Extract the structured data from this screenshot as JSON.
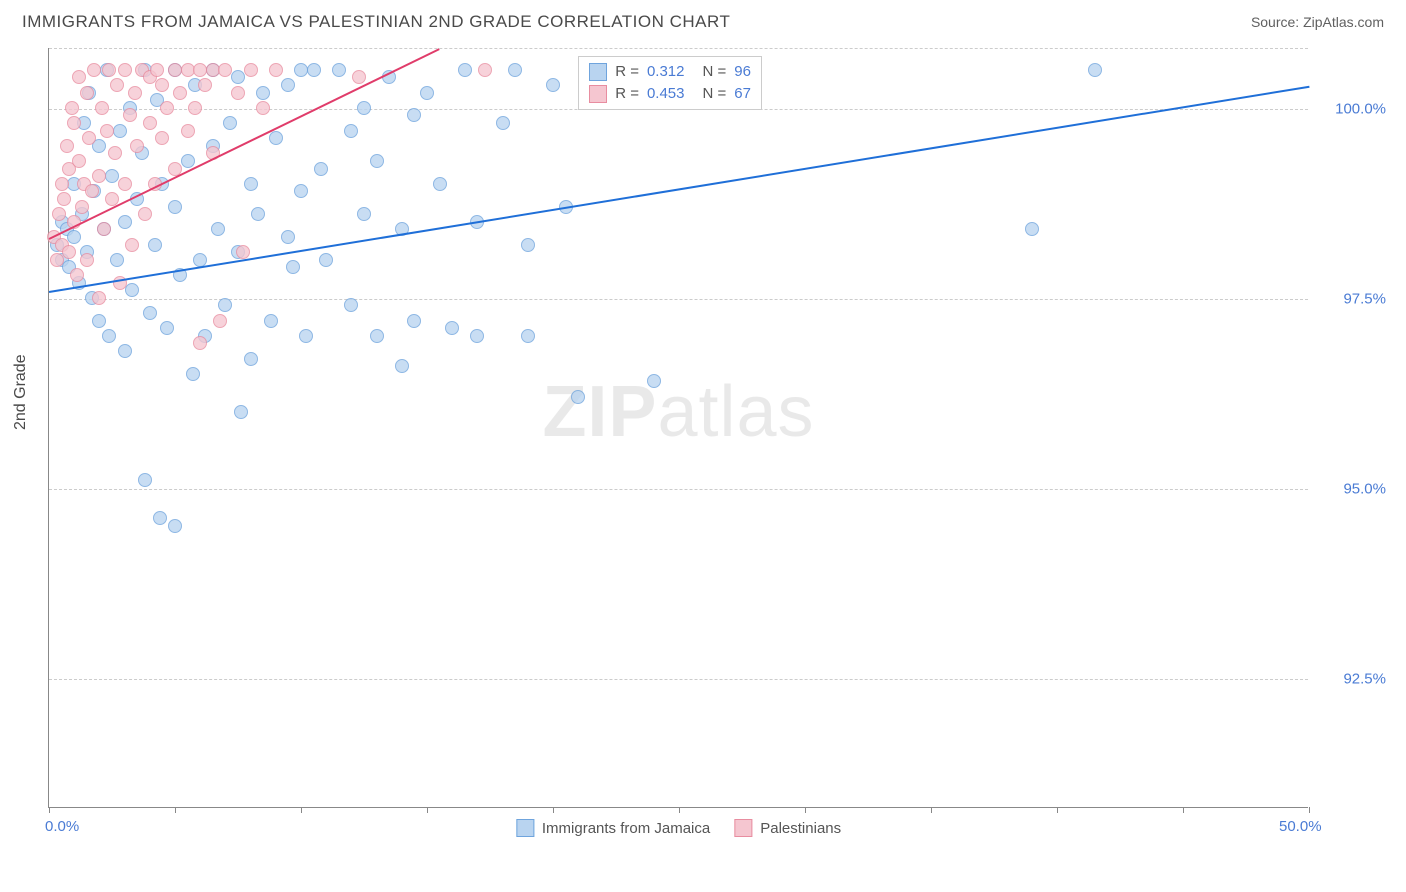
{
  "header": {
    "title": "IMMIGRANTS FROM JAMAICA VS PALESTINIAN 2ND GRADE CORRELATION CHART",
    "source": "Source: ZipAtlas.com"
  },
  "chart": {
    "type": "scatter",
    "ylabel": "2nd Grade",
    "watermark_a": "ZIP",
    "watermark_b": "atlas",
    "xlim": [
      0,
      50
    ],
    "ylim": [
      90.8,
      100.8
    ],
    "yticks": [
      {
        "v": 92.5,
        "label": "92.5%"
      },
      {
        "v": 95.0,
        "label": "95.0%"
      },
      {
        "v": 97.5,
        "label": "97.5%"
      },
      {
        "v": 100.0,
        "label": "100.0%"
      }
    ],
    "xtick_marks": [
      0,
      5,
      10,
      15,
      20,
      25,
      30,
      35,
      40,
      45,
      50
    ],
    "xtick_labels": [
      {
        "v": 0,
        "label": "0.0%"
      },
      {
        "v": 50,
        "label": "50.0%"
      }
    ],
    "background_color": "#ffffff",
    "grid_color": "#cccccc",
    "axis_color": "#888888",
    "series": [
      {
        "key": "jamaica",
        "name": "Immigrants from Jamaica",
        "fill": "#b9d4f0",
        "stroke": "#6fa4dd",
        "line_color": "#1f6fd8",
        "marker_size": 14,
        "R": "0.312",
        "N": "96",
        "trend": {
          "x1": 0,
          "y1": 97.6,
          "x2": 50,
          "y2": 100.3
        },
        "points": [
          [
            0.3,
            98.2
          ],
          [
            0.5,
            98.0
          ],
          [
            0.5,
            98.5
          ],
          [
            0.7,
            98.4
          ],
          [
            0.8,
            97.9
          ],
          [
            1.0,
            98.3
          ],
          [
            1.0,
            99.0
          ],
          [
            1.2,
            97.7
          ],
          [
            1.3,
            98.6
          ],
          [
            1.4,
            99.8
          ],
          [
            1.5,
            98.1
          ],
          [
            1.6,
            100.2
          ],
          [
            1.7,
            97.5
          ],
          [
            1.8,
            98.9
          ],
          [
            2.0,
            99.5
          ],
          [
            2.0,
            97.2
          ],
          [
            2.2,
            98.4
          ],
          [
            2.3,
            100.5
          ],
          [
            2.4,
            97.0
          ],
          [
            2.5,
            99.1
          ],
          [
            2.7,
            98.0
          ],
          [
            2.8,
            99.7
          ],
          [
            3.0,
            96.8
          ],
          [
            3.0,
            98.5
          ],
          [
            3.2,
            100.0
          ],
          [
            3.3,
            97.6
          ],
          [
            3.5,
            98.8
          ],
          [
            3.7,
            99.4
          ],
          [
            3.8,
            100.5
          ],
          [
            3.8,
            95.1
          ],
          [
            4.0,
            97.3
          ],
          [
            4.2,
            98.2
          ],
          [
            4.3,
            100.1
          ],
          [
            4.4,
            94.6
          ],
          [
            4.5,
            99.0
          ],
          [
            4.7,
            97.1
          ],
          [
            5.0,
            98.7
          ],
          [
            5.0,
            100.5
          ],
          [
            5.0,
            94.5
          ],
          [
            5.2,
            97.8
          ],
          [
            5.5,
            99.3
          ],
          [
            5.7,
            96.5
          ],
          [
            5.8,
            100.3
          ],
          [
            6.0,
            98.0
          ],
          [
            6.2,
            97.0
          ],
          [
            6.5,
            99.5
          ],
          [
            6.5,
            100.5
          ],
          [
            6.7,
            98.4
          ],
          [
            7.0,
            97.4
          ],
          [
            7.2,
            99.8
          ],
          [
            7.5,
            98.1
          ],
          [
            7.5,
            100.4
          ],
          [
            7.6,
            96.0
          ],
          [
            8.0,
            99.0
          ],
          [
            8.0,
            96.7
          ],
          [
            8.3,
            98.6
          ],
          [
            8.5,
            100.2
          ],
          [
            8.8,
            97.2
          ],
          [
            9.0,
            99.6
          ],
          [
            9.5,
            98.3
          ],
          [
            9.5,
            100.3
          ],
          [
            9.7,
            97.9
          ],
          [
            10.0,
            100.5
          ],
          [
            10.0,
            98.9
          ],
          [
            10.2,
            97.0
          ],
          [
            10.5,
            100.5
          ],
          [
            10.8,
            99.2
          ],
          [
            11.0,
            98.0
          ],
          [
            11.5,
            100.5
          ],
          [
            12.0,
            97.4
          ],
          [
            12.0,
            99.7
          ],
          [
            12.5,
            98.6
          ],
          [
            12.5,
            100.0
          ],
          [
            13.0,
            97.0
          ],
          [
            13.0,
            99.3
          ],
          [
            13.5,
            100.4
          ],
          [
            14.0,
            98.4
          ],
          [
            14.0,
            96.6
          ],
          [
            14.5,
            99.9
          ],
          [
            14.5,
            97.2
          ],
          [
            15.0,
            100.2
          ],
          [
            15.5,
            99.0
          ],
          [
            16.0,
            97.1
          ],
          [
            16.5,
            100.5
          ],
          [
            17.0,
            98.5
          ],
          [
            17.0,
            97.0
          ],
          [
            18.0,
            99.8
          ],
          [
            18.5,
            100.5
          ],
          [
            19.0,
            98.2
          ],
          [
            19.0,
            97.0
          ],
          [
            20.0,
            100.3
          ],
          [
            20.5,
            98.7
          ],
          [
            21.0,
            96.2
          ],
          [
            24.0,
            96.4
          ],
          [
            39.0,
            98.4
          ],
          [
            41.5,
            100.5
          ]
        ]
      },
      {
        "key": "palestinian",
        "name": "Palestinians",
        "fill": "#f5c6d0",
        "stroke": "#e88da0",
        "line_color": "#e03c6a",
        "marker_size": 14,
        "R": "0.453",
        "N": "67",
        "trend": {
          "x1": 0,
          "y1": 98.3,
          "x2": 15.5,
          "y2": 100.8
        },
        "points": [
          [
            0.2,
            98.3
          ],
          [
            0.3,
            98.0
          ],
          [
            0.4,
            98.6
          ],
          [
            0.5,
            99.0
          ],
          [
            0.5,
            98.2
          ],
          [
            0.6,
            98.8
          ],
          [
            0.7,
            99.5
          ],
          [
            0.8,
            98.1
          ],
          [
            0.8,
            99.2
          ],
          [
            0.9,
            100.0
          ],
          [
            1.0,
            98.5
          ],
          [
            1.0,
            99.8
          ],
          [
            1.1,
            97.8
          ],
          [
            1.2,
            99.3
          ],
          [
            1.2,
            100.4
          ],
          [
            1.3,
            98.7
          ],
          [
            1.4,
            99.0
          ],
          [
            1.5,
            100.2
          ],
          [
            1.5,
            98.0
          ],
          [
            1.6,
            99.6
          ],
          [
            1.7,
            98.9
          ],
          [
            1.8,
            100.5
          ],
          [
            2.0,
            99.1
          ],
          [
            2.0,
            97.5
          ],
          [
            2.1,
            100.0
          ],
          [
            2.2,
            98.4
          ],
          [
            2.3,
            99.7
          ],
          [
            2.4,
            100.5
          ],
          [
            2.5,
            98.8
          ],
          [
            2.6,
            99.4
          ],
          [
            2.7,
            100.3
          ],
          [
            2.8,
            97.7
          ],
          [
            3.0,
            99.0
          ],
          [
            3.0,
            100.5
          ],
          [
            3.2,
            99.9
          ],
          [
            3.3,
            98.2
          ],
          [
            3.4,
            100.2
          ],
          [
            3.5,
            99.5
          ],
          [
            3.7,
            100.5
          ],
          [
            3.8,
            98.6
          ],
          [
            4.0,
            99.8
          ],
          [
            4.0,
            100.4
          ],
          [
            4.2,
            99.0
          ],
          [
            4.3,
            100.5
          ],
          [
            4.5,
            99.6
          ],
          [
            4.5,
            100.3
          ],
          [
            4.7,
            100.0
          ],
          [
            5.0,
            99.2
          ],
          [
            5.0,
            100.5
          ],
          [
            5.2,
            100.2
          ],
          [
            5.5,
            99.7
          ],
          [
            5.5,
            100.5
          ],
          [
            5.8,
            100.0
          ],
          [
            6.0,
            100.5
          ],
          [
            6.0,
            96.9
          ],
          [
            6.2,
            100.3
          ],
          [
            6.5,
            99.4
          ],
          [
            6.5,
            100.5
          ],
          [
            6.8,
            97.2
          ],
          [
            7.0,
            100.5
          ],
          [
            7.5,
            100.2
          ],
          [
            7.7,
            98.1
          ],
          [
            8.0,
            100.5
          ],
          [
            8.5,
            100.0
          ],
          [
            9.0,
            100.5
          ],
          [
            12.3,
            100.4
          ],
          [
            17.3,
            100.5
          ]
        ]
      }
    ],
    "stats_legend": {
      "left_pct": 42,
      "top_pct": 1
    }
  }
}
